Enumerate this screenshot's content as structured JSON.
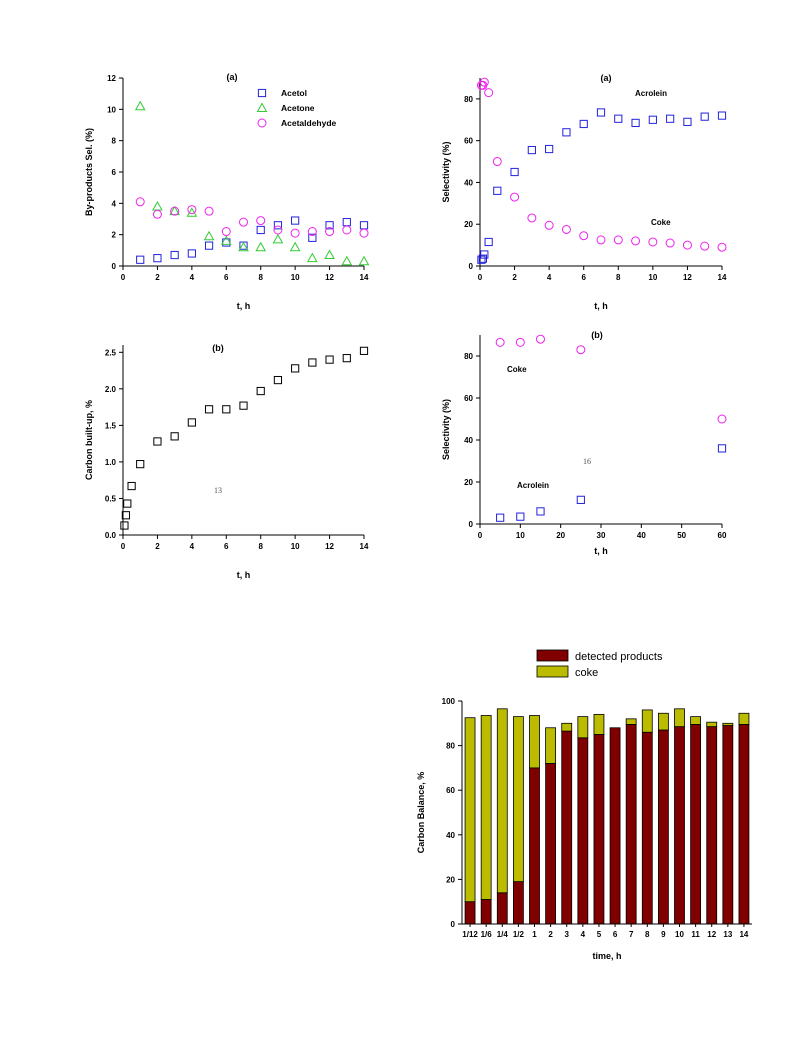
{
  "chart_data": [
    {
      "id": "byproducts",
      "type": "scatter",
      "title": "(a)",
      "xlabel": "t, h",
      "ylabel": "By-products Sel. (%)",
      "xlim": [
        0,
        14
      ],
      "ylim": [
        0,
        12
      ],
      "xticks": [
        0,
        2,
        4,
        6,
        8,
        10,
        12,
        14
      ],
      "yticks": [
        0,
        2,
        4,
        6,
        8,
        10,
        12
      ],
      "legend": "top-right",
      "series": [
        {
          "name": "Acetol",
          "marker": "square",
          "color": "#2222dd",
          "x": [
            1,
            2,
            3,
            4,
            5,
            6,
            7,
            8,
            9,
            10,
            11,
            12,
            13,
            14
          ],
          "y": [
            0.4,
            0.5,
            0.7,
            0.8,
            1.3,
            1.5,
            1.3,
            2.3,
            2.6,
            2.9,
            1.8,
            2.6,
            2.8,
            2.6
          ]
        },
        {
          "name": "Acetone",
          "marker": "triangle",
          "color": "#33cc33",
          "x": [
            1,
            2,
            3,
            4,
            5,
            6,
            7,
            8,
            9,
            10,
            11,
            12,
            13,
            14
          ],
          "y": [
            10.2,
            3.8,
            3.5,
            3.4,
            1.9,
            1.6,
            1.2,
            1.2,
            1.7,
            1.2,
            0.5,
            0.7,
            0.3,
            0.3
          ]
        },
        {
          "name": "Acetaldehyde",
          "marker": "circle",
          "color": "#ee22ee",
          "x": [
            1,
            2,
            3,
            4,
            5,
            6,
            7,
            8,
            9,
            10,
            11,
            12,
            13,
            14
          ],
          "y": [
            4.1,
            3.3,
            3.5,
            3.6,
            3.5,
            2.2,
            2.8,
            2.9,
            2.3,
            2.1,
            2.2,
            2.2,
            2.3,
            2.1
          ]
        }
      ]
    },
    {
      "id": "selectivity_a",
      "type": "scatter",
      "title": "(a)",
      "xlabel": "t, h",
      "ylabel": "Selectivity (%)",
      "xlim": [
        0,
        14
      ],
      "ylim": [
        0,
        90
      ],
      "xticks": [
        0,
        2,
        4,
        6,
        8,
        10,
        12,
        14
      ],
      "yticks": [
        0,
        20,
        40,
        60,
        80
      ],
      "annotations": [
        {
          "text": "Acrolein",
          "x": 9,
          "y": 80
        },
        {
          "text": "Coke",
          "x": 10.3,
          "y": 20
        }
      ],
      "series": [
        {
          "name": "Acrolein",
          "marker": "square",
          "color": "#2222dd",
          "x": [
            0.083,
            0.167,
            0.25,
            0.5,
            1,
            2,
            3,
            4,
            5,
            6,
            7,
            8,
            9,
            10,
            11,
            12,
            13,
            14
          ],
          "y": [
            3,
            3.5,
            5.5,
            11.5,
            36,
            45,
            55.5,
            56,
            64,
            68,
            73.5,
            70.5,
            68.5,
            70,
            70.5,
            69,
            71.5,
            72
          ]
        },
        {
          "name": "Coke",
          "marker": "circle",
          "color": "#ee22ee",
          "x": [
            0.083,
            0.167,
            0.25,
            0.5,
            1,
            2,
            3,
            4,
            5,
            6,
            7,
            8,
            9,
            10,
            11,
            12,
            13,
            14
          ],
          "y": [
            86.5,
            86.5,
            88,
            83,
            50,
            33,
            23,
            19.5,
            17.5,
            14.5,
            12.5,
            12.5,
            12,
            11.5,
            11,
            10,
            9.5,
            9
          ]
        }
      ]
    },
    {
      "id": "carbon_buildup",
      "type": "scatter",
      "title": "(b)",
      "xlabel": "t, h",
      "ylabel": "Carbon built-up, %",
      "xlim": [
        0,
        14
      ],
      "ylim": [
        0,
        2.6
      ],
      "xticks": [
        0,
        2,
        4,
        6,
        8,
        10,
        12,
        14
      ],
      "yticks": [
        0.0,
        0.5,
        1.0,
        1.5,
        2.0,
        2.5
      ],
      "page_number": "13",
      "series": [
        {
          "name": "",
          "marker": "square",
          "color": "#000000",
          "x": [
            0.083,
            0.167,
            0.25,
            0.5,
            1,
            2,
            3,
            4,
            5,
            6,
            7,
            8,
            9,
            10,
            11,
            12,
            13,
            14
          ],
          "y": [
            0.13,
            0.27,
            0.43,
            0.67,
            0.97,
            1.28,
            1.35,
            1.54,
            1.72,
            1.72,
            1.77,
            1.97,
            2.12,
            2.28,
            2.36,
            2.4,
            2.42,
            2.52
          ]
        }
      ]
    },
    {
      "id": "selectivity_b",
      "type": "scatter",
      "title": "(b)",
      "xlabel": "t, h",
      "ylabel": "Selectivity (%)",
      "xlim": [
        0,
        60
      ],
      "ylim": [
        0,
        90
      ],
      "xticks": [
        0,
        10,
        20,
        30,
        40,
        50,
        60
      ],
      "yticks": [
        0,
        20,
        40,
        60,
        80
      ],
      "page_number": "16",
      "annotations": [
        {
          "text": "Coke",
          "x": 4,
          "y": 71
        },
        {
          "text": "Acrolein",
          "x": 4,
          "y": 16
        }
      ],
      "series": [
        {
          "name": "Acrolein",
          "marker": "square",
          "color": "#2222dd",
          "x": [
            5,
            10,
            15,
            25,
            60
          ],
          "y": [
            3,
            3.5,
            6,
            11.5,
            36
          ]
        },
        {
          "name": "Coke",
          "marker": "circle",
          "color": "#ee22ee",
          "x": [
            5,
            10,
            15,
            25,
            60
          ],
          "y": [
            86.5,
            86.5,
            88,
            83,
            50
          ]
        }
      ]
    },
    {
      "id": "carbon_balance",
      "type": "bar",
      "stacked": true,
      "xlabel": "time, h",
      "ylabel": "Carbon Balance, %",
      "ylim": [
        0,
        100
      ],
      "yticks": [
        0,
        20,
        40,
        60,
        80,
        100
      ],
      "legend": "top",
      "categories": [
        "1/12",
        "1/6",
        "1/4",
        "1/2",
        "1",
        "2",
        "3",
        "4",
        "5",
        "6",
        "7",
        "8",
        "9",
        "10",
        "11",
        "12",
        "13",
        "14"
      ],
      "series": [
        {
          "name": "detected products",
          "color": "#800000",
          "values": [
            10,
            11,
            14,
            19,
            70,
            72,
            86.5,
            83.5,
            85,
            88,
            89.5,
            86,
            87,
            88.5,
            89.5,
            88.5,
            89,
            89.5
          ]
        },
        {
          "name": "coke",
          "color": "#bbbb00",
          "values": [
            82.5,
            82.5,
            82.5,
            74,
            23.5,
            16,
            3.5,
            9.5,
            9,
            0,
            2.5,
            10,
            7.5,
            8,
            3.5,
            2,
            1,
            5
          ]
        }
      ]
    }
  ]
}
